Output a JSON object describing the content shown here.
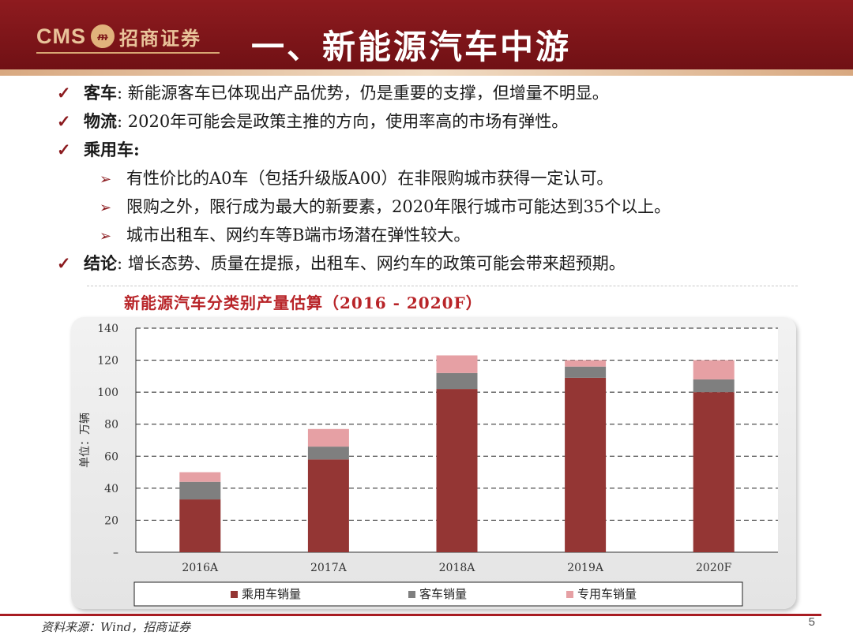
{
  "header": {
    "logo_cms": "CMS",
    "logo_cn": "招商证券",
    "title": "一、新能源汽车中游"
  },
  "bullets": [
    {
      "label": "客车",
      "sep": ":",
      "text": "新能源客车已体现出产品优势，仍是重要的支撑，但增量不明显。"
    },
    {
      "label": "物流",
      "sep": ":",
      "text": "2020年可能会是政策主推的方向，使用率高的市场有弹性。"
    },
    {
      "label": "乘用车",
      "sep": ":",
      "text": ""
    },
    {
      "sub": "有性价比的A0车（包括升级版A00）在非限购城市获得一定认可。"
    },
    {
      "sub": "限购之外，限行成为最大的新要素，2020年限行城市可能达到35个以上。"
    },
    {
      "sub": "城市出租车、网约车等B端市场潜在弹性较大。"
    },
    {
      "label": "结论",
      "sep": ":",
      "text": "增长态势、质量在提振，出租车、网约车的政策可能会带来超预期。"
    }
  ],
  "chart_data": {
    "type": "bar",
    "stacked": true,
    "title": "新能源汽车分类别产量估算（2016 - 2020F）",
    "ylabel": "单位：万辆",
    "categories": [
      "2016A",
      "2017A",
      "2018A",
      "2019A",
      "2020F"
    ],
    "yticks": [
      "–",
      "20",
      "40",
      "60",
      "80",
      "100",
      "120",
      "140"
    ],
    "ylim": [
      0,
      140
    ],
    "grid": true,
    "legend_position": "bottom",
    "series": [
      {
        "name": "乘用车销量",
        "color": "#943634",
        "values": [
          33,
          58,
          102,
          109,
          100
        ]
      },
      {
        "name": "客车销量",
        "color": "#7f7f7f",
        "values": [
          11,
          8,
          10,
          7,
          8
        ]
      },
      {
        "name": "专用车销量",
        "color": "#e6a0a4",
        "values": [
          6,
          11,
          11,
          4,
          12
        ]
      }
    ]
  },
  "footer": {
    "source": "资料来源：Wind，招商证券",
    "page": "5"
  }
}
